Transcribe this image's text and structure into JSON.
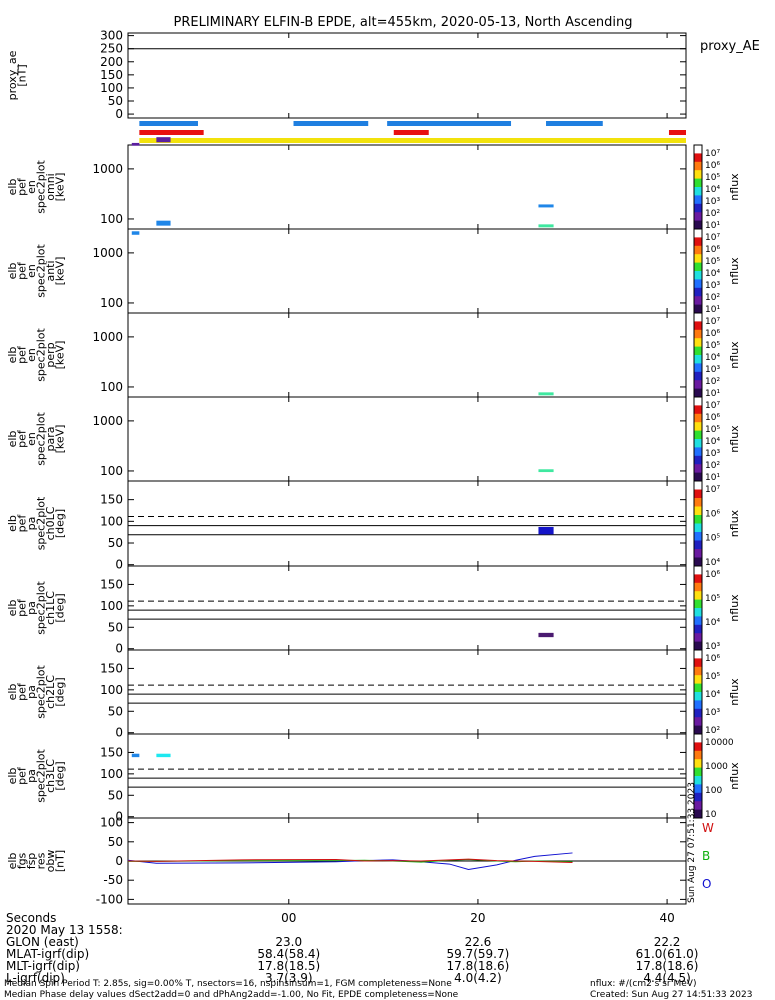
{
  "title": "PRELIMINARY ELFIN-B EPDE, alt=455km, 2020-05-13, North Ascending",
  "proxy_label": "proxy_AE",
  "footer": {
    "seconds_label": "Seconds",
    "date_label": "2020 May 13 1558:",
    "rows": [
      {
        "label": "GLON (east)",
        "values": [
          "23.0",
          "22.6",
          "22.2"
        ]
      },
      {
        "label": "MLAT-igrf(dip)",
        "values": [
          "58.4(58.4)",
          "59.7(59.7)",
          "61.0(61.0)"
        ]
      },
      {
        "label": "MLT-igrf(dip)",
        "values": [
          "17.8(18.5)",
          "17.8(18.6)",
          "17.8(18.6)"
        ]
      },
      {
        "label": "L-igrf(dip)",
        "values": [
          "3.7(3.9)",
          "4.0(4.2)",
          "4.4(4.5)"
        ]
      }
    ],
    "note1": "Median Spin Period T: 2.85s, sig=0.00% T, nsectors=16, nspinsinsum=1, FGM completeness=None",
    "note2": "Median Phase delay values dSect2add=0 and dPhAng2add=-1.00, No Fit, EPDE completeness=None",
    "nflux_units": "nflux: #/(cm2 s sr MeV)",
    "created": "Created: Sun Aug 27 14:51:33 2023",
    "side_stamp": "Sun Aug 27 07:51:33 2023"
  },
  "chart_data": {
    "type": "heatmap",
    "x_ticks": [
      "00",
      "20",
      "40"
    ],
    "x_tick_values": [
      0,
      20,
      40
    ],
    "xlim": [
      -17,
      42
    ],
    "colors": {
      "blue_bar": "#1f7fe0",
      "red_bar": "#e81010",
      "yellow_bar": "#f2e20c",
      "comp_W": "#d01010",
      "comp_B": "#10b010",
      "comp_O": "#1010d0"
    },
    "status_bars": [
      {
        "color": "blue_bar",
        "segments": [
          [
            -15.8,
            -9.6
          ],
          [
            0.5,
            8.4
          ],
          [
            10.4,
            23.5
          ],
          [
            27.2,
            33.2
          ]
        ]
      },
      {
        "color": "red_bar",
        "segments": [
          [
            -15.8,
            -9.0
          ],
          [
            11.1,
            14.8
          ],
          [
            40.2,
            42
          ]
        ]
      },
      {
        "color": "yellow_bar",
        "segments": [
          [
            -15.8,
            42
          ]
        ]
      }
    ],
    "panels": [
      {
        "id": "proxy_ae",
        "ylabel": [
          "proxy_ae",
          "[nT]"
        ],
        "kind": "line",
        "ylim": [
          -15,
          310
        ],
        "yticks": [
          300,
          250,
          200,
          150,
          100,
          50,
          0
        ],
        "hlines": [
          {
            "y": 250,
            "style": "solid"
          }
        ]
      },
      {
        "id": "omni",
        "ylabel": [
          "elb",
          "pef",
          "en",
          "spec2plot",
          "omni",
          "[keV]"
        ],
        "kind": "spec",
        "log": true,
        "ylim": [
          63,
          3000
        ],
        "yticks": [
          1000,
          100
        ],
        "cbar": {
          "label": "nflux",
          "ticks": [
            "10⁷",
            "10⁶",
            "10⁵",
            "10⁴",
            "10³",
            "10²",
            "10¹"
          ]
        },
        "blocks": [
          {
            "x": [
              -16.6,
              -15.8
            ],
            "y": [
              2900,
              3300
            ],
            "color": "#5a1f9e"
          },
          {
            "x": [
              -14.0,
              -12.5
            ],
            "y": [
              3400,
              4300
            ],
            "color": "#5a1f9e"
          },
          {
            "x": [
              26.4,
              28.0
            ],
            "y": [
              170,
              195
            ],
            "color": "#1f86e8"
          },
          {
            "x": [
              26.4,
              28.0
            ],
            "y": [
              68,
              78
            ],
            "color": "#3fe8a0"
          }
        ]
      },
      {
        "id": "anti",
        "ylabel": [
          "elb",
          "pef",
          "en",
          "spec2plot",
          "anti",
          "[keV]"
        ],
        "kind": "spec",
        "log": true,
        "ylim": [
          63,
          3000
        ],
        "yticks": [
          1000,
          100
        ],
        "cbar": {
          "label": "nflux",
          "ticks": [
            "10⁷",
            "10⁶",
            "10⁵",
            "10⁴",
            "10³",
            "10²",
            "10¹"
          ]
        },
        "blocks": [
          {
            "x": [
              -16.6,
              -15.8
            ],
            "y": [
              2300,
              2700
            ],
            "color": "#1f86e8"
          },
          {
            "x": [
              -14.0,
              -12.5
            ],
            "y": [
              3500,
              4400
            ],
            "color": "#1f86e8"
          }
        ]
      },
      {
        "id": "perp",
        "ylabel": [
          "elb",
          "pef",
          "en",
          "spec2plot",
          "perp",
          "[keV]"
        ],
        "kind": "spec",
        "log": true,
        "ylim": [
          63,
          3000
        ],
        "yticks": [
          1000,
          100
        ],
        "cbar": {
          "label": "nflux",
          "ticks": [
            "10⁷",
            "10⁶",
            "10⁵",
            "10⁴",
            "10³",
            "10²",
            "10¹"
          ]
        },
        "blocks": [
          {
            "x": [
              26.4,
              28.0
            ],
            "y": [
              68,
              78
            ],
            "color": "#3fe8a0"
          }
        ]
      },
      {
        "id": "para",
        "ylabel": [
          "elb",
          "pef",
          "en",
          "spec2plot",
          "para",
          "[keV]"
        ],
        "kind": "spec",
        "log": true,
        "ylim": [
          63,
          3000
        ],
        "yticks": [
          1000,
          100
        ],
        "cbar": {
          "label": "nflux",
          "ticks": [
            "10⁷",
            "10⁶",
            "10⁵",
            "10⁴",
            "10³",
            "10²",
            "10¹"
          ]
        },
        "blocks": [
          {
            "x": [
              26.4,
              28.0
            ],
            "y": [
              95,
              108
            ],
            "color": "#3fe8a0"
          }
        ]
      },
      {
        "id": "ch0lc",
        "ylabel": [
          "elb",
          "pef",
          "pa",
          "spec2plot",
          "ch0LC",
          "[deg]"
        ],
        "kind": "pa",
        "ylim": [
          -3,
          193
        ],
        "yticks": [
          150,
          100,
          50,
          0
        ],
        "hlines": [
          {
            "y": 111,
            "style": "dash"
          },
          {
            "y": 90,
            "style": "solid"
          },
          {
            "y": 69,
            "style": "solid"
          }
        ],
        "cbar": {
          "label": "nflux",
          "ticks": [
            "10⁷",
            "10⁶",
            "10⁵",
            "10⁴"
          ]
        },
        "blocks": [
          {
            "x": [
              26.4,
              28.0
            ],
            "y": [
              70,
              87
            ],
            "color": "#1414c8"
          }
        ]
      },
      {
        "id": "ch1lc",
        "ylabel": [
          "elb",
          "pef",
          "pa",
          "spec2plot",
          "ch1LC",
          "[deg]"
        ],
        "kind": "pa",
        "ylim": [
          -3,
          193
        ],
        "yticks": [
          150,
          100,
          50,
          0
        ],
        "hlines": [
          {
            "y": 111,
            "style": "dash"
          },
          {
            "y": 90,
            "style": "solid"
          },
          {
            "y": 69,
            "style": "solid"
          }
        ],
        "cbar": {
          "label": "nflux",
          "ticks": [
            "10⁶",
            "10⁵",
            "10⁴",
            "10³"
          ]
        },
        "blocks": [
          {
            "x": [
              26.4,
              28.0
            ],
            "y": [
              27,
              37
            ],
            "color": "#4a1a70"
          }
        ]
      },
      {
        "id": "ch2lc",
        "ylabel": [
          "elb",
          "pef",
          "pa",
          "spec2plot",
          "ch2LC",
          "[deg]"
        ],
        "kind": "pa",
        "ylim": [
          -3,
          193
        ],
        "yticks": [
          150,
          100,
          50,
          0
        ],
        "hlines": [
          {
            "y": 111,
            "style": "dash"
          },
          {
            "y": 90,
            "style": "solid"
          },
          {
            "y": 69,
            "style": "solid"
          }
        ],
        "cbar": {
          "label": "nflux",
          "ticks": [
            "10⁶",
            "10⁵",
            "10⁴",
            "10³",
            "10²"
          ]
        }
      },
      {
        "id": "ch3lc",
        "ylabel": [
          "elb",
          "pef",
          "pa",
          "spec2plot",
          "ch3LC",
          "[deg]"
        ],
        "kind": "pa",
        "ylim": [
          -3,
          193
        ],
        "yticks": [
          150,
          100,
          50,
          0
        ],
        "hlines": [
          {
            "y": 111,
            "style": "dash"
          },
          {
            "y": 90,
            "style": "solid"
          },
          {
            "y": 69,
            "style": "solid"
          }
        ],
        "cbar": {
          "label": "nflux",
          "ticks": [
            "10000",
            "1000",
            "100",
            "10"
          ]
        },
        "blocks": [
          {
            "x": [
              -16.6,
              -15.8
            ],
            "y": [
              139,
              147
            ],
            "color": "#1f86e8"
          },
          {
            "x": [
              -14.0,
              -12.5
            ],
            "y": [
              139,
              147
            ],
            "color": "#1ee8f0"
          }
        ]
      },
      {
        "id": "fgs",
        "ylabel": [
          "elb",
          "fgs",
          "fsp",
          "res",
          "obw",
          "[nT]"
        ],
        "kind": "line",
        "ylim": [
          -112,
          112
        ],
        "yticks": [
          100,
          50,
          0,
          -50,
          -100
        ],
        "hlines": [
          {
            "y": 0,
            "style": "solid"
          }
        ],
        "component_labels": [
          "W",
          "B",
          "O"
        ],
        "series": [
          {
            "name": "O",
            "color": "comp_O",
            "x": [
              -17,
              -14,
              -5,
              5,
              8,
              11,
              14,
              17,
              19,
              22,
              24,
              26,
              30
            ],
            "y": [
              2,
              -6,
              -5,
              -2,
              1,
              3,
              -2,
              -8,
              -22,
              -10,
              2,
              12,
              21
            ]
          },
          {
            "name": "B",
            "color": "comp_B",
            "x": [
              -17,
              -14,
              -5,
              5,
              8,
              11,
              14,
              17,
              19,
              22,
              24,
              26,
              30
            ],
            "y": [
              -1,
              -1,
              1,
              1,
              2,
              0,
              -3,
              2,
              4,
              0,
              -2,
              0,
              -2
            ]
          },
          {
            "name": "W",
            "color": "comp_W",
            "x": [
              -17,
              -14,
              -5,
              5,
              8,
              11,
              14,
              17,
              19,
              22,
              24,
              26,
              30
            ],
            "y": [
              0,
              -1,
              3,
              4,
              0,
              1,
              0,
              3,
              5,
              1,
              0,
              -1,
              -4
            ]
          }
        ]
      }
    ]
  }
}
